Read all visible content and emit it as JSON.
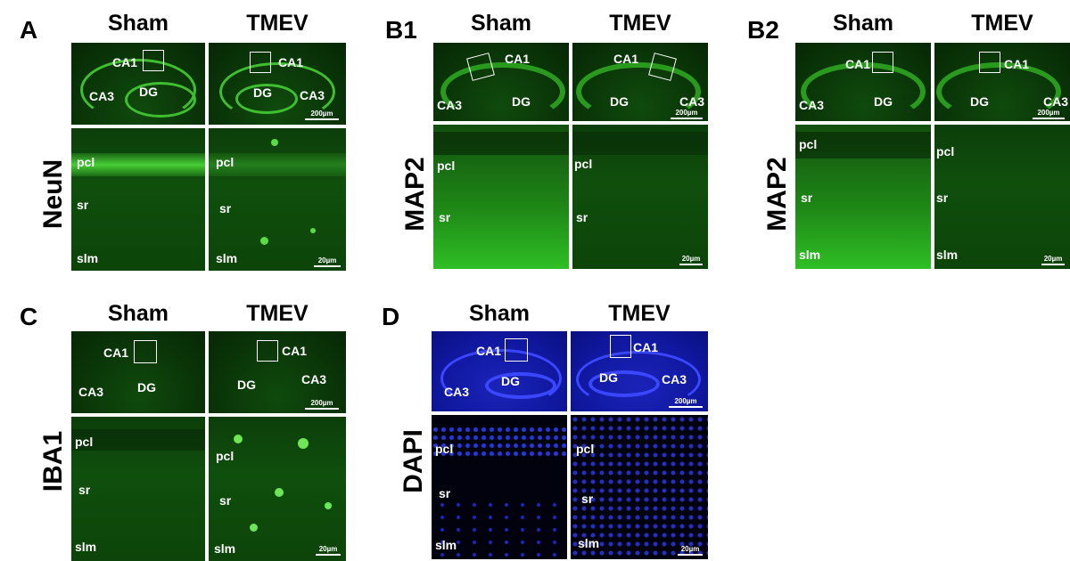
{
  "panels": {
    "A": {
      "letter": "A",
      "stain": "NeuN",
      "sham": "Sham",
      "tmev": "TMEV",
      "top_labels": {
        "sham": [
          "CA1",
          "CA3",
          "DG"
        ],
        "tmev": [
          "CA1",
          "DG",
          "CA3"
        ]
      },
      "bottom_labels": {
        "sham": [
          "pcl",
          "sr",
          "slm"
        ],
        "tmev": [
          "pcl",
          "sr",
          "slm"
        ]
      },
      "scale_top": "200µm",
      "scale_bottom": "20µm"
    },
    "B1": {
      "letter": "B1",
      "stain": "MAP2",
      "sham": "Sham",
      "tmev": "TMEV",
      "top_labels": {
        "sham": [
          "CA1",
          "CA3",
          "DG"
        ],
        "tmev": [
          "CA1",
          "DG",
          "CA3"
        ]
      },
      "bottom_labels": {
        "sham": [
          "pcl",
          "sr"
        ],
        "tmev": [
          "pcl",
          "sr"
        ]
      },
      "scale_top": "200µm",
      "scale_bottom": "20µm"
    },
    "B2": {
      "letter": "B2",
      "stain": "MAP2",
      "sham": "Sham",
      "tmev": "TMEV",
      "top_labels": {
        "sham": [
          "CA1",
          "CA3",
          "DG"
        ],
        "tmev": [
          "CA1",
          "DG",
          "CA3"
        ]
      },
      "bottom_labels": {
        "sham": [
          "pcl",
          "sr",
          "slm"
        ],
        "tmev": [
          "pcl",
          "sr",
          "slm"
        ]
      },
      "scale_top": "200µm",
      "scale_bottom": "20µm"
    },
    "C": {
      "letter": "C",
      "stain": "IBA1",
      "sham": "Sham",
      "tmev": "TMEV",
      "top_labels": {
        "sham": [
          "CA1",
          "CA3",
          "DG"
        ],
        "tmev": [
          "CA1",
          "DG",
          "CA3"
        ]
      },
      "bottom_labels": {
        "sham": [
          "pcl",
          "sr",
          "slm"
        ],
        "tmev": [
          "pcl",
          "sr",
          "slm"
        ]
      },
      "scale_top": "200µm",
      "scale_bottom": "20µm"
    },
    "D": {
      "letter": "D",
      "stain": "DAPI",
      "sham": "Sham",
      "tmev": "TMEV",
      "top_labels": {
        "sham": [
          "CA1",
          "CA3",
          "DG"
        ],
        "tmev": [
          "CA1",
          "DG",
          "CA3"
        ]
      },
      "bottom_labels": {
        "sham": [
          "pcl",
          "sr",
          "slm"
        ],
        "tmev": [
          "pcl",
          "sr",
          "slm"
        ]
      },
      "scale_top": "200µm",
      "scale_bottom": "20µm"
    }
  }
}
